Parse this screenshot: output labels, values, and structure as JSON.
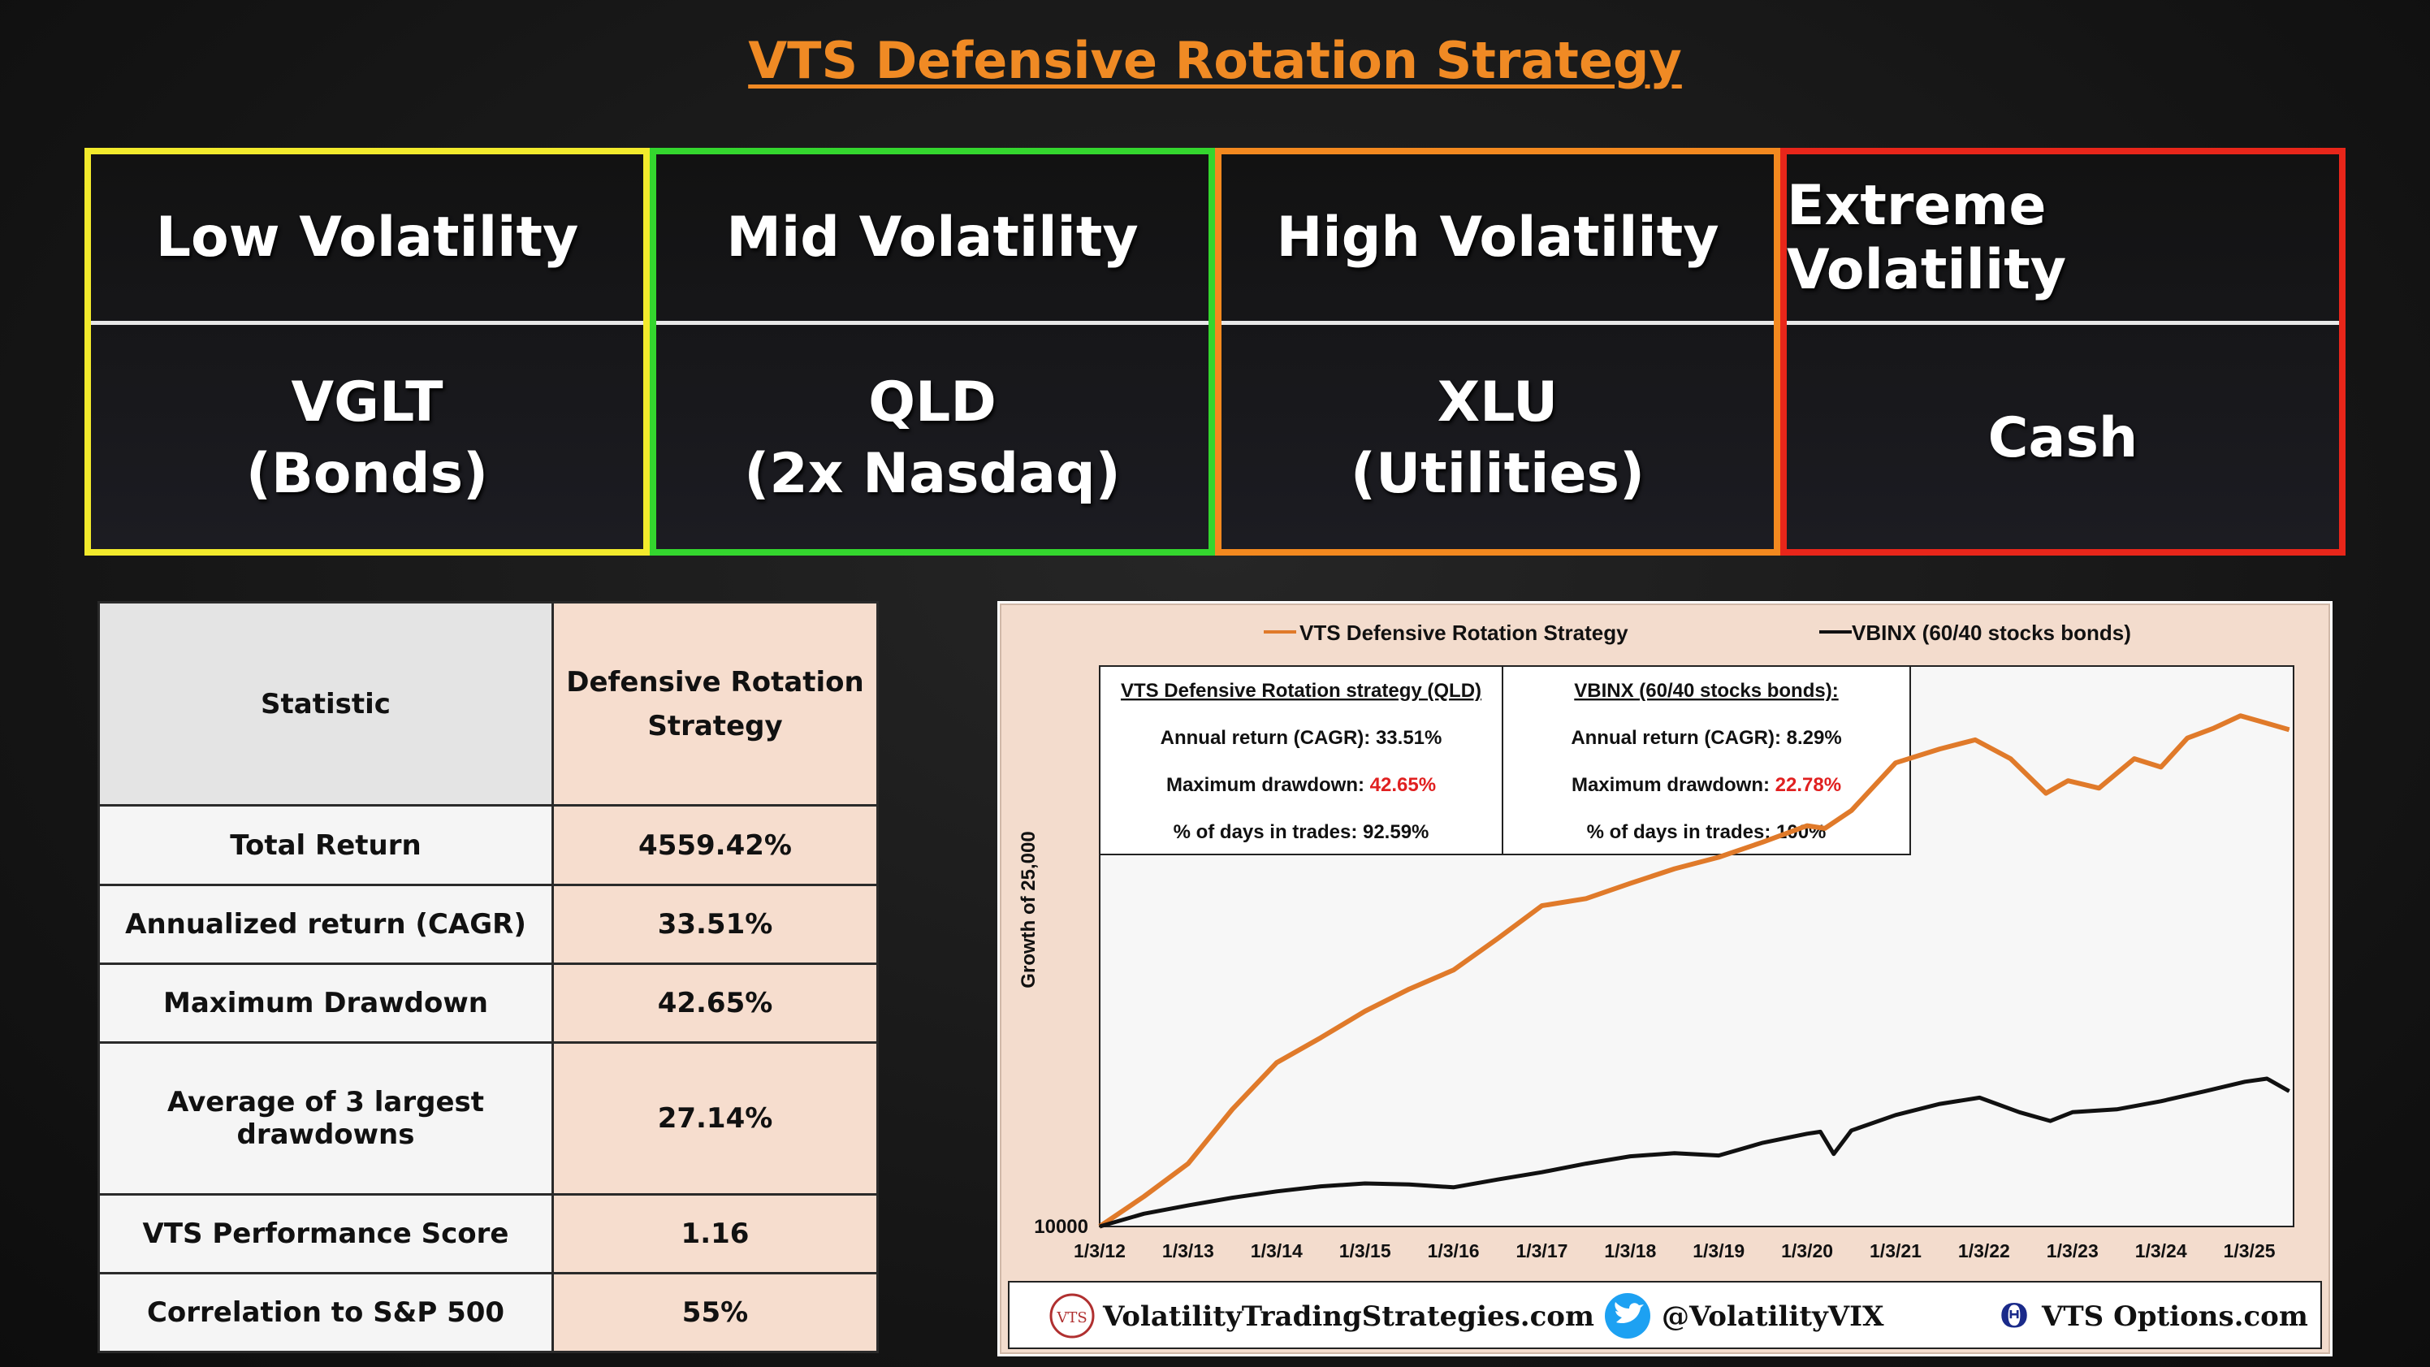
{
  "title": "VTS Defensive Rotation Strategy",
  "regimes": [
    {
      "name": "Low Volatility",
      "asset": "VGLT",
      "desc": "(Bonds)",
      "color": "#f2ea2c"
    },
    {
      "name": "Mid Volatility",
      "asset": "QLD",
      "desc": "(2x Nasdaq)",
      "color": "#34d62e"
    },
    {
      "name": "High Volatility",
      "asset": "XLU",
      "desc": "(Utilities)",
      "color": "#f3891f"
    },
    {
      "name": "Extreme Volatility",
      "asset": "Cash",
      "desc": "",
      "color": "#e8261a"
    }
  ],
  "stats": {
    "header": {
      "label": "Statistic",
      "value_line1": "Defensive Rotation",
      "value_line2": "Strategy"
    },
    "rows": [
      {
        "label": "Total Return",
        "value": "4559.42%"
      },
      {
        "label": "Annualized return  (CAGR)",
        "value": "33.51%"
      },
      {
        "label": "Maximum Drawdown",
        "value": "42.65%"
      },
      {
        "label": "Average of 3 largest drawdowns",
        "value": "27.14%"
      },
      {
        "label": "VTS Performance Score",
        "value": "1.16"
      },
      {
        "label": "Correlation to S&P 500",
        "value": "55%"
      }
    ]
  },
  "chart_data": {
    "type": "line",
    "ylabel": "Growth of 25,000",
    "y_min_label": "10000",
    "x_ticks": [
      "1/3/12",
      "1/3/13",
      "1/3/14",
      "1/3/15",
      "1/3/16",
      "1/3/17",
      "1/3/18",
      "1/3/19",
      "1/3/20",
      "1/3/21",
      "1/3/22",
      "1/3/23",
      "1/3/24",
      "1/3/25"
    ],
    "scale": "log",
    "y_range_norm": [
      1,
      55
    ],
    "series": [
      {
        "name": "VTS Defensive Rotation Strategy",
        "color": "#e07a2a",
        "x": [
          2012.0,
          2012.5,
          2013.0,
          2013.5,
          2014.0,
          2014.5,
          2015.0,
          2015.5,
          2016.0,
          2016.5,
          2017.0,
          2017.5,
          2018.0,
          2018.5,
          2019.0,
          2019.5,
          2020.0,
          2020.2,
          2020.5,
          2021.0,
          2021.5,
          2021.9,
          2022.3,
          2022.7,
          2022.95,
          2023.3,
          2023.7,
          2024.0,
          2024.3,
          2024.6,
          2024.9,
          2025.2,
          2025.45
        ],
        "y": [
          1.0,
          1.25,
          1.6,
          2.4,
          3.4,
          4.1,
          5.0,
          5.9,
          6.8,
          8.6,
          11.0,
          11.6,
          13.0,
          14.5,
          15.8,
          17.7,
          20.0,
          19.6,
          22.4,
          32.0,
          35.5,
          38.0,
          33.0,
          25.5,
          28.0,
          26.5,
          33.0,
          31.0,
          38.5,
          41.5,
          45.5,
          43.0,
          41.0
        ]
      },
      {
        "name": "VBINX  (60/40 stocks bonds)",
        "color": "#111111",
        "x": [
          2012.0,
          2012.5,
          2013.0,
          2013.5,
          2014.0,
          2014.5,
          2015.0,
          2015.5,
          2016.0,
          2016.5,
          2017.0,
          2017.5,
          2018.0,
          2018.5,
          2019.0,
          2019.5,
          2020.0,
          2020.15,
          2020.3,
          2020.5,
          2021.0,
          2021.5,
          2021.95,
          2022.4,
          2022.75,
          2023.0,
          2023.5,
          2024.0,
          2024.5,
          2024.95,
          2025.2,
          2025.45
        ],
        "y": [
          1.0,
          1.1,
          1.17,
          1.24,
          1.3,
          1.35,
          1.38,
          1.37,
          1.34,
          1.42,
          1.5,
          1.6,
          1.69,
          1.73,
          1.7,
          1.87,
          2.0,
          2.03,
          1.72,
          2.05,
          2.3,
          2.5,
          2.62,
          2.35,
          2.2,
          2.35,
          2.4,
          2.55,
          2.75,
          2.95,
          3.02,
          2.75
        ]
      }
    ],
    "stats_panels": [
      {
        "title": "VTS Defensive Rotation strategy  (QLD)",
        "lines": [
          {
            "label": "Annual return  (CAGR):",
            "value": "33.51%"
          },
          {
            "label": "Maximum drawdown:",
            "value": "42.65%",
            "value_color": "#e02020"
          },
          {
            "label": "% of days in trades:",
            "value": "92.59%"
          }
        ]
      },
      {
        "title": "VBINX  (60/40 stocks bonds):",
        "lines": [
          {
            "label": "Annual return  (CAGR):",
            "value": "8.29%"
          },
          {
            "label": "Maximum drawdown:",
            "value": "22.78%",
            "value_color": "#e02020"
          },
          {
            "label": "% of days in trades:",
            "value": "100%"
          }
        ]
      }
    ]
  },
  "footer": {
    "site": "VolatilityTradingStrategies.com",
    "site_logo": "VTS",
    "twitter": "@VolatilityVIX",
    "options": "VTS Options.com",
    "options_logo": "Θ"
  }
}
